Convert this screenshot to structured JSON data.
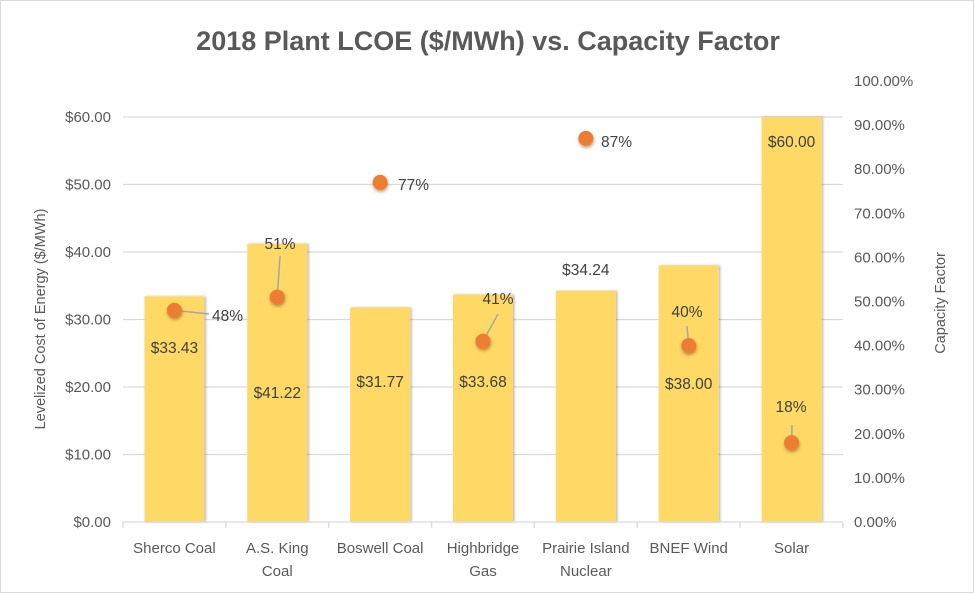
{
  "chart_data": {
    "type": "bar",
    "title": "2018 Plant LCOE ($/MWh) vs. Capacity Factor",
    "xlabel": "",
    "ylabel": "Levelized Cost of Energy ($/MWh)",
    "y2label": "Capacity Factor",
    "categories": [
      [
        "Sherco Coal"
      ],
      [
        "A.S. King",
        "Coal"
      ],
      [
        "Boswell Coal"
      ],
      [
        "Highbridge",
        "Gas"
      ],
      [
        "Prairie Island",
        "Nuclear"
      ],
      [
        "BNEF Wind"
      ],
      [
        "Solar"
      ]
    ],
    "ylim": [
      0,
      60
    ],
    "y_ticks": [
      "$0.00",
      "$10.00",
      "$20.00",
      "$30.00",
      "$40.00",
      "$50.00",
      "$60.00"
    ],
    "y2lim": [
      0,
      100
    ],
    "y2_ticks": [
      "0.00%",
      "10.00%",
      "20.00%",
      "30.00%",
      "40.00%",
      "50.00%",
      "60.00%",
      "70.00%",
      "80.00%",
      "90.00%",
      "100.00%"
    ],
    "grid": true,
    "series": [
      {
        "name": "LCOE ($/MWh)",
        "type": "bar",
        "axis": "left",
        "color": "#FFD966",
        "values": [
          33.43,
          41.22,
          31.77,
          33.68,
          34.24,
          38.0,
          60.0
        ],
        "labels": [
          "$33.43",
          "$41.22",
          "$31.77",
          "$33.68",
          "$34.24",
          "$38.00",
          "$60.00"
        ]
      },
      {
        "name": "Capacity Factor",
        "type": "scatter",
        "axis": "right",
        "color": "#ED7D31",
        "values": [
          48,
          51,
          77,
          41,
          87,
          40,
          18
        ],
        "labels": [
          "48%",
          "51%",
          "77%",
          "41%",
          "87%",
          "40%",
          "18%"
        ]
      }
    ]
  }
}
